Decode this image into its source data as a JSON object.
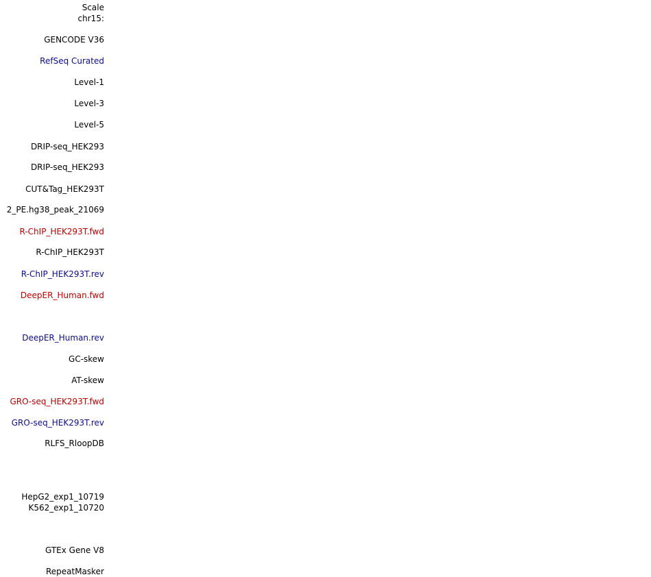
{
  "colors": {
    "default": "#000000",
    "blue": "#0c0c8c",
    "red": "#c00000"
  },
  "tracks": [
    {
      "label": "Scale",
      "color": "default"
    },
    {
      "label": "chr15:",
      "color": "default"
    },
    {
      "label": "GENCODE V36",
      "color": "default"
    },
    {
      "label": "RefSeq Curated",
      "color": "blue"
    },
    {
      "label": "Level-1",
      "color": "default"
    },
    {
      "label": "Level-3",
      "color": "default"
    },
    {
      "label": "Level-5",
      "color": "default"
    },
    {
      "label": "DRIP-seq_HEK293",
      "color": "default"
    },
    {
      "label": "DRIP-seq_HEK293",
      "color": "default"
    },
    {
      "label": "CUT&Tag_HEK293T",
      "color": "default"
    },
    {
      "label": "2_PE.hg38_peak_21069",
      "color": "default"
    },
    {
      "label": "R-ChIP_HEK293T.fwd",
      "color": "red"
    },
    {
      "label": "R-ChIP_HEK293T",
      "color": "default"
    },
    {
      "label": "R-ChIP_HEK293T.rev",
      "color": "blue"
    },
    {
      "label": "DeepER_Human.fwd",
      "color": "red"
    },
    {
      "label": "DeepER_Human.rev",
      "color": "blue"
    },
    {
      "label": "GC-skew",
      "color": "default"
    },
    {
      "label": "AT-skew",
      "color": "default"
    },
    {
      "label": "GRO-seq_HEK293T.fwd",
      "color": "red"
    },
    {
      "label": "GRO-seq_HEK293T.rev",
      "color": "blue"
    },
    {
      "label": "RLFS_RloopDB",
      "color": "default"
    },
    {
      "label": "HepG2_exp1_10719",
      "color": "default"
    },
    {
      "label": "K562_exp1_10720",
      "color": "default"
    },
    {
      "label": "GTEx Gene V8",
      "color": "default"
    },
    {
      "label": "RepeatMasker",
      "color": "default"
    }
  ]
}
